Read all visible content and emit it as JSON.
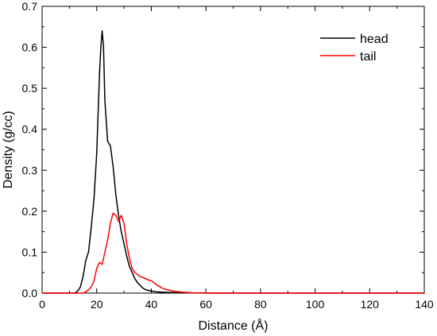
{
  "chart_data": {
    "type": "line",
    "xlabel": "Distance (Å)",
    "ylabel": "Density (g/cc)",
    "xlim": [
      0,
      140
    ],
    "ylim": [
      0,
      0.7
    ],
    "xticks": [
      0,
      20,
      40,
      60,
      80,
      100,
      120,
      140
    ],
    "yticks": [
      0.0,
      0.1,
      0.2,
      0.3,
      0.4,
      0.5,
      0.6,
      0.7
    ],
    "xtick_labels": [
      "0",
      "20",
      "40",
      "60",
      "80",
      "100",
      "120",
      "140"
    ],
    "ytick_labels": [
      "0.0",
      "0.1",
      "0.2",
      "0.3",
      "0.4",
      "0.5",
      "0.6",
      "0.7"
    ],
    "grid": false,
    "legend_position": "top-right",
    "series": [
      {
        "name": "head",
        "color": "#000000",
        "x": [
          0,
          12,
          13,
          14,
          15,
          16,
          17,
          18,
          19,
          20,
          21,
          21.5,
          22,
          22.5,
          23,
          24,
          25,
          26,
          27,
          28,
          29,
          30,
          31,
          32,
          33,
          34,
          35,
          36,
          37,
          38,
          40,
          42,
          45,
          50,
          55,
          60,
          65,
          140
        ],
        "y": [
          0.0,
          0.0,
          0.005,
          0.015,
          0.04,
          0.08,
          0.1,
          0.16,
          0.23,
          0.34,
          0.53,
          0.6,
          0.64,
          0.6,
          0.47,
          0.37,
          0.36,
          0.31,
          0.24,
          0.19,
          0.15,
          0.12,
          0.09,
          0.065,
          0.05,
          0.035,
          0.025,
          0.018,
          0.012,
          0.008,
          0.005,
          0.003,
          0.002,
          0.001,
          0.0005,
          0.0,
          0.0,
          0.0
        ]
      },
      {
        "name": "tail",
        "color": "#ff0000",
        "x": [
          0,
          15,
          16,
          17,
          18,
          19,
          20,
          21,
          22,
          23,
          24,
          25,
          26,
          27,
          28,
          29,
          30,
          31,
          32,
          33,
          34,
          35,
          36,
          37,
          38,
          39,
          40,
          42,
          44,
          46,
          48,
          50,
          55,
          60,
          65,
          140
        ],
        "y": [
          0.0,
          0.0,
          0.003,
          0.008,
          0.015,
          0.03,
          0.06,
          0.075,
          0.07,
          0.1,
          0.13,
          0.17,
          0.195,
          0.19,
          0.175,
          0.19,
          0.17,
          0.12,
          0.085,
          0.06,
          0.05,
          0.045,
          0.04,
          0.038,
          0.035,
          0.032,
          0.03,
          0.02,
          0.012,
          0.008,
          0.005,
          0.003,
          0.001,
          0.0005,
          0.0,
          0.0
        ]
      }
    ]
  }
}
